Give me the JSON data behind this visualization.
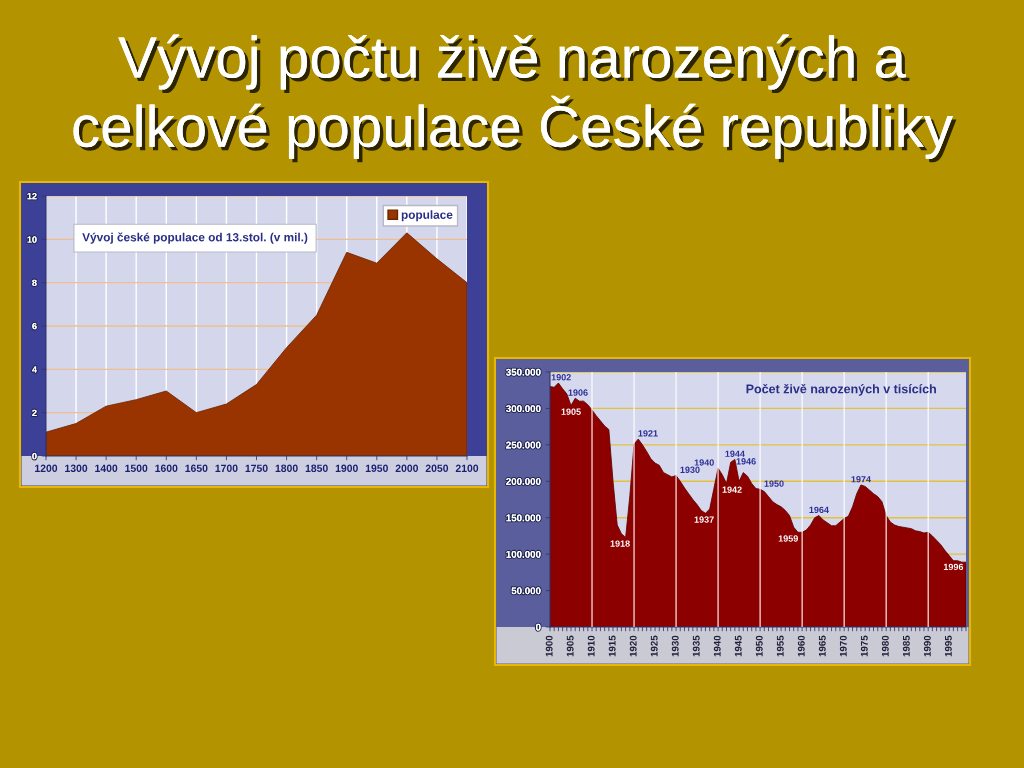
{
  "chart_data": [
    {
      "type": "other",
      "title": "Vývoj počtu živě narozených a\ncelkové populace České republiky"
    },
    {
      "type": "area",
      "title": "Vývoj české populace od 13.stol. (v mil.)",
      "categories": [
        "1200",
        "1300",
        "1400",
        "1500",
        "1600",
        "1650",
        "1700",
        "1750",
        "1800",
        "1850",
        "1900",
        "1950",
        "2000",
        "2050",
        "2100"
      ],
      "series": [
        {
          "name": "populace",
          "color": "#993300",
          "values": [
            1.1,
            1.5,
            2.3,
            2.6,
            3.0,
            2.0,
            2.4,
            3.3,
            5.0,
            6.5,
            9.4,
            8.9,
            10.3,
            9.1,
            8.0
          ]
        }
      ],
      "ylim": [
        0,
        12
      ],
      "yticks": [
        0,
        2,
        4,
        6,
        8,
        10,
        12
      ],
      "grid": true,
      "legend": "top right"
    },
    {
      "type": "area",
      "title": "Počet živě narozených v tisících",
      "x": [
        1900,
        1901,
        1902,
        1903,
        1904,
        1905,
        1906,
        1907,
        1908,
        1909,
        1910,
        1911,
        1912,
        1913,
        1914,
        1915,
        1916,
        1917,
        1918,
        1919,
        1920,
        1921,
        1922,
        1923,
        1924,
        1925,
        1926,
        1927,
        1928,
        1929,
        1930,
        1931,
        1932,
        1933,
        1934,
        1935,
        1936,
        1937,
        1938,
        1939,
        1940,
        1941,
        1942,
        1943,
        1944,
        1945,
        1946,
        1947,
        1948,
        1949,
        1950,
        1951,
        1952,
        1953,
        1954,
        1955,
        1956,
        1957,
        1958,
        1959,
        1960,
        1961,
        1962,
        1963,
        1964,
        1965,
        1966,
        1967,
        1968,
        1969,
        1970,
        1971,
        1972,
        1973,
        1974,
        1975,
        1976,
        1977,
        1978,
        1979,
        1980,
        1981,
        1982,
        1983,
        1984,
        1985,
        1986,
        1987,
        1988,
        1989,
        1990,
        1991,
        1992,
        1993,
        1994,
        1995,
        1996,
        1997,
        1998,
        1999
      ],
      "series": [
        {
          "color": "#8c0000",
          "values": [
            330000,
            329000,
            335000,
            327000,
            320000,
            304000,
            314000,
            310000,
            310000,
            305000,
            298000,
            290000,
            283000,
            276000,
            271000,
            200000,
            140000,
            128000,
            123000,
            180000,
            251000,
            258000,
            250000,
            241000,
            231000,
            225000,
            222000,
            212000,
            209000,
            206000,
            208000,
            200000,
            191000,
            183000,
            175000,
            168000,
            160000,
            156000,
            162000,
            190000,
            218000,
            209000,
            197000,
            226000,
            230000,
            200000,
            212000,
            207000,
            197000,
            190000,
            189000,
            186000,
            179000,
            172000,
            168000,
            165000,
            160000,
            153000,
            137000,
            130000,
            130000,
            133000,
            140000,
            150000,
            153000,
            147000,
            143000,
            139000,
            139000,
            144000,
            149000,
            152000,
            165000,
            183000,
            195000,
            193000,
            188000,
            183000,
            179000,
            172000,
            153000,
            144000,
            140000,
            138000,
            137000,
            136000,
            135000,
            132000,
            131000,
            129000,
            130000,
            125000,
            119000,
            113000,
            105000,
            98000,
            91000,
            91000,
            89000,
            89000
          ]
        }
      ],
      "xlim": [
        1900,
        1999
      ],
      "xticks": [
        1900,
        {
          "value": 1901,
          "label": null
        },
        {
          "value": 1902,
          "label": null
        },
        {
          "value": 1903,
          "label": null
        },
        {
          "value": 1904,
          "label": null
        },
        1905,
        {
          "value": 1906,
          "label": null
        },
        {
          "value": 1907,
          "label": null
        },
        {
          "value": 1908,
          "label": null
        },
        {
          "value": 1909,
          "label": null
        },
        1910,
        {
          "value": 1911,
          "label": null
        },
        {
          "value": 1912,
          "label": null
        },
        {
          "value": 1913,
          "label": null
        },
        {
          "value": 1914,
          "label": null
        },
        1915,
        {
          "value": 1916,
          "label": null
        },
        {
          "value": 1917,
          "label": null
        },
        {
          "value": 1918,
          "label": null
        },
        {
          "value": 1919,
          "label": null
        },
        1920,
        {
          "value": 1921,
          "label": null
        },
        {
          "value": 1922,
          "label": null
        },
        {
          "value": 1923,
          "label": null
        },
        {
          "value": 1924,
          "label": null
        },
        1925,
        {
          "value": 1926,
          "label": null
        },
        {
          "value": 1927,
          "label": null
        },
        {
          "value": 1928,
          "label": null
        },
        {
          "value": 1929,
          "label": null
        },
        1930,
        {
          "value": 1931,
          "label": null
        },
        {
          "value": 1932,
          "label": null
        },
        {
          "value": 1933,
          "label": null
        },
        {
          "value": 1934,
          "label": null
        },
        1935,
        {
          "value": 1936,
          "label": null
        },
        {
          "value": 1937,
          "label": null
        },
        {
          "value": 1938,
          "label": null
        },
        {
          "value": 1939,
          "label": null
        },
        1940,
        {
          "value": 1941,
          "label": null
        },
        {
          "value": 1942,
          "label": null
        },
        {
          "value": 1943,
          "label": null
        },
        {
          "value": 1944,
          "label": null
        },
        1945,
        {
          "value": 1946,
          "label": null
        },
        {
          "value": 1947,
          "label": null
        },
        {
          "value": 1948,
          "label": null
        },
        {
          "value": 1949,
          "label": null
        },
        1950,
        {
          "value": 1951,
          "label": null
        },
        {
          "value": 1952,
          "label": null
        },
        {
          "value": 1953,
          "label": null
        },
        {
          "value": 1954,
          "label": null
        },
        1955,
        {
          "value": 1956,
          "label": null
        },
        {
          "value": 1957,
          "label": null
        },
        {
          "value": 1958,
          "label": null
        },
        {
          "value": 1959,
          "label": null
        },
        1960,
        {
          "value": 1961,
          "label": null
        },
        {
          "value": 1962,
          "label": null
        },
        {
          "value": 1963,
          "label": null
        },
        {
          "value": 1964,
          "label": null
        },
        1965,
        {
          "value": 1966,
          "label": null
        },
        {
          "value": 1967,
          "label": null
        },
        {
          "value": 1968,
          "label": null
        },
        {
          "value": 1969,
          "label": null
        },
        1970,
        {
          "value": 1971,
          "label": null
        },
        {
          "value": 1972,
          "label": null
        },
        {
          "value": 1973,
          "label": null
        },
        {
          "value": 1974,
          "label": null
        },
        1975,
        {
          "value": 1976,
          "label": null
        },
        {
          "value": 1977,
          "label": null
        },
        {
          "value": 1978,
          "label": null
        },
        {
          "value": 1979,
          "label": null
        },
        1980,
        {
          "value": 1981,
          "label": null
        },
        {
          "value": 1982,
          "label": null
        },
        {
          "value": 1983,
          "label": null
        },
        {
          "value": 1984,
          "label": null
        },
        1985,
        {
          "value": 1986,
          "label": null
        },
        {
          "value": 1987,
          "label": null
        },
        {
          "value": 1988,
          "label": null
        },
        {
          "value": 1989,
          "label": null
        },
        1990,
        {
          "value": 1991,
          "label": null
        },
        {
          "value": 1992,
          "label": null
        },
        {
          "value": 1993,
          "label": null
        },
        {
          "value": 1994,
          "label": null
        },
        1995,
        {
          "value": 1996,
          "label": null
        },
        {
          "value": 1997,
          "label": null
        },
        {
          "value": 1998,
          "label": null
        },
        {
          "value": 1999,
          "label": null
        }
      ],
      "ylim": [
        0,
        350000
      ],
      "yticks": [
        0,
        {
          "value": 50000,
          "label": "50.000"
        },
        {
          "value": 100000,
          "label": "100.000"
        },
        {
          "value": 150000,
          "label": "150.000"
        },
        {
          "value": 200000,
          "label": "200.000"
        },
        {
          "value": 250000,
          "label": "250.000"
        },
        {
          "value": 300000,
          "label": "300.000"
        },
        {
          "value": 350000,
          "label": "350.000"
        }
      ],
      "grid": "y",
      "ref_lines": [
        {
          "axis": "x",
          "value": 1910,
          "color": "#ffffff"
        },
        {
          "axis": "x",
          "value": 1920,
          "color": "#ffffff"
        },
        {
          "axis": "x",
          "value": 1930,
          "color": "#ffffff"
        },
        {
          "axis": "x",
          "value": 1940,
          "color": "#ffffff"
        },
        {
          "axis": "x",
          "value": 1950,
          "color": "#ffffff"
        },
        {
          "axis": "x",
          "value": 1960,
          "color": "#ffffff"
        },
        {
          "axis": "x",
          "value": 1970,
          "color": "#ffffff"
        },
        {
          "axis": "x",
          "value": 1980,
          "color": "#ffffff"
        },
        {
          "axis": "x",
          "value": 1990,
          "color": "#ffffff"
        }
      ],
      "annotations": [
        {
          "text": "1902",
          "x": 1902,
          "y": 335000
        },
        {
          "text": "1906",
          "x": 1906,
          "y": 314000
        },
        {
          "text": "1905",
          "x": 1905,
          "y": 304000
        },
        {
          "text": "1921",
          "x": 1921,
          "y": 258000
        },
        {
          "text": "1930",
          "x": 1930,
          "y": 208000
        },
        {
          "text": "1944",
          "x": 1944,
          "y": 230000
        },
        {
          "text": "1940",
          "x": 1940,
          "y": 218000
        },
        {
          "text": "1946",
          "x": 1946,
          "y": 212000
        },
        {
          "text": "1942",
          "x": 1942,
          "y": 197000
        },
        {
          "text": "1950",
          "x": 1950,
          "y": 189000
        },
        {
          "text": "1918",
          "x": 1918,
          "y": 123000
        },
        {
          "text": "1937",
          "x": 1937,
          "y": 156000
        },
        {
          "text": "1964",
          "x": 1964,
          "y": 153000
        },
        {
          "text": "1974",
          "x": 1974,
          "y": 195000
        },
        {
          "text": "1959",
          "x": 1959,
          "y": 130000
        },
        {
          "text": "1996",
          "x": 1996,
          "y": 91000
        }
      ]
    }
  ]
}
